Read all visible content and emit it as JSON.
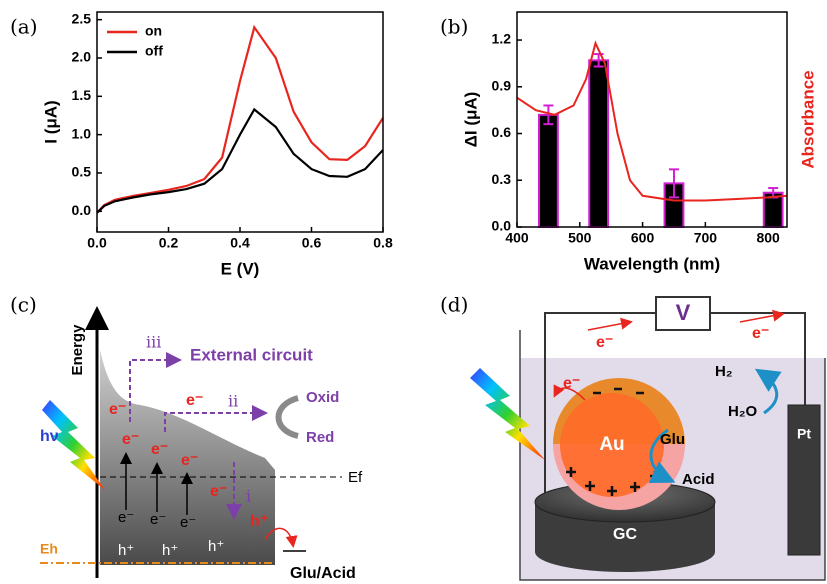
{
  "panel_labels": [
    "(a)",
    "(b)",
    "(c)",
    "(d)"
  ],
  "chart_data": [
    {
      "type": "line",
      "xlabel": "E (V)",
      "ylabel": "I (μA)",
      "x": [
        0,
        0.02,
        0.05,
        0.1,
        0.15,
        0.2,
        0.25,
        0.3,
        0.35,
        0.4,
        0.44,
        0.5,
        0.55,
        0.6,
        0.65,
        0.7,
        0.75,
        0.8
      ],
      "series": [
        {
          "name": "on",
          "color": "#e8251f",
          "values": [
            -0.02,
            0.08,
            0.15,
            0.2,
            0.24,
            0.28,
            0.33,
            0.42,
            0.7,
            1.7,
            2.4,
            2.0,
            1.3,
            0.9,
            0.68,
            0.67,
            0.85,
            1.22
          ]
        },
        {
          "name": "off",
          "color": "#000000",
          "values": [
            -0.02,
            0.07,
            0.13,
            0.18,
            0.22,
            0.25,
            0.29,
            0.36,
            0.55,
            1.0,
            1.33,
            1.1,
            0.75,
            0.55,
            0.46,
            0.45,
            0.55,
            0.8
          ]
        }
      ],
      "xlim": [
        0,
        0.8
      ],
      "ylim": [
        -0.27,
        2.6
      ],
      "xticks": [
        {
          "value": 0,
          "label": "0.0"
        },
        0.2,
        0.4,
        0.6,
        0.8
      ],
      "yticks": [
        {
          "value": 0,
          "label": "0.0"
        },
        0.5,
        {
          "value": 1,
          "label": "1.0"
        },
        1.5,
        {
          "value": 2,
          "label": "2.0"
        },
        2.5
      ],
      "legend": "upper left"
    },
    {
      "type": "bar",
      "xlabel": "Wavelength (nm)",
      "ylabel": "ΔI (μA)",
      "y2label": "Absorbance",
      "x": [
        450,
        530,
        650,
        808
      ],
      "values": [
        0.72,
        1.07,
        0.28,
        0.22
      ],
      "errors": [
        0.06,
        0.04,
        0.09,
        0.03
      ],
      "color": "#000000",
      "edgecolor": "#d21fd2",
      "line": {
        "axis": "y2",
        "color": "#e8251f",
        "x": [
          400,
          430,
          460,
          490,
          510,
          525,
          540,
          560,
          580,
          600,
          650,
          700,
          750,
          800,
          830
        ],
        "values": [
          0.83,
          0.75,
          0.72,
          0.78,
          0.95,
          1.18,
          1.05,
          0.6,
          0.3,
          0.2,
          0.17,
          0.17,
          0.18,
          0.19,
          0.2
        ]
      },
      "xlim": [
        400,
        830
      ],
      "ylim": [
        0,
        1.38
      ],
      "y2lim": [
        0,
        1.38
      ],
      "xticks": [
        400,
        500,
        600,
        700,
        800
      ],
      "yticks": [
        {
          "value": 0,
          "label": "0.0"
        },
        0.3,
        0.6,
        0.9,
        1.2
      ]
    }
  ],
  "diagram_c": {
    "y_axis_label": "Energy",
    "paths": [
      "iii",
      "ii",
      "i"
    ],
    "external_circuit": "External circuit",
    "redox": [
      "Oxid",
      "Red"
    ],
    "light": "hν",
    "fermi_level": "Ef",
    "hole_level": "Eh",
    "reaction": "Glu/Acid",
    "hot_electrons": [
      "e⁻",
      "e⁻",
      "e⁻",
      "e⁻",
      "e⁻",
      "e⁻"
    ],
    "electrons": [
      "e⁻",
      "e⁻",
      "e⁻"
    ],
    "holes": [
      "h⁺",
      "h⁺",
      "h⁺"
    ],
    "hot_hole": "h⁺"
  },
  "diagram_d": {
    "meter": "V",
    "electrons": [
      "e⁻",
      "e⁻",
      "e⁻"
    ],
    "particle": "Au",
    "substrate": "Glu",
    "product": "Acid",
    "h2": "H₂",
    "h2o": "H₂O",
    "counter_electrode": "Pt",
    "working_electrode": "GC"
  }
}
